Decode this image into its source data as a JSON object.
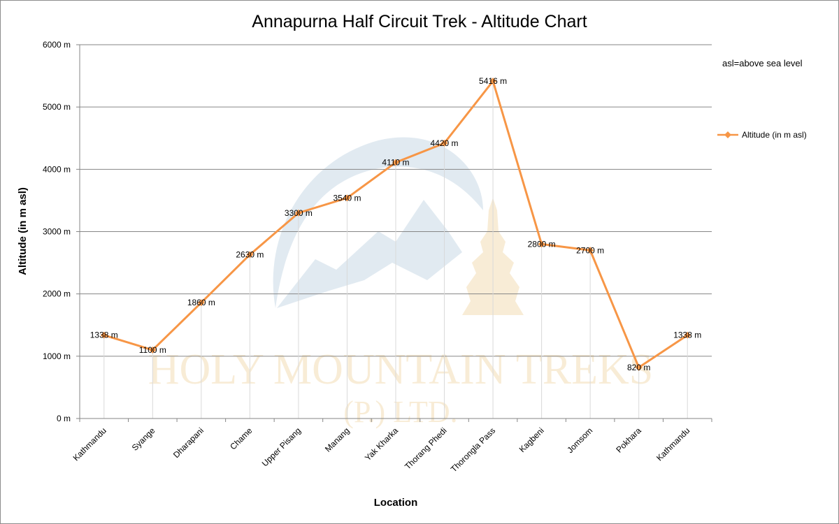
{
  "chart_data": {
    "type": "line",
    "title": "Annapurna Half Circuit Trek - Altitude Chart",
    "xlabel": "Location",
    "ylabel": "Altitude (in m asl)",
    "ylim": [
      0,
      6000
    ],
    "yticks": [
      0,
      1000,
      2000,
      3000,
      4000,
      5000,
      6000
    ],
    "ytick_labels": [
      "0 m",
      "1000 m",
      "2000 m",
      "3000 m",
      "4000 m",
      "5000 m",
      "6000 m"
    ],
    "unit_suffix": " m",
    "grid": true,
    "categories": [
      "Kathmandu",
      "Syange",
      "Dharapani",
      "Chame",
      "Upper Pisang",
      "Manang",
      "Yak Kharka",
      "Thorang Phedi",
      "Thorongla Pass",
      "Kagbeni",
      "Jomsom",
      "Pokhara",
      "Kathmandu"
    ],
    "series": [
      {
        "name": "Altitude (in  m asl)",
        "color": "#f79646",
        "values": [
          1338,
          1100,
          1860,
          2630,
          3300,
          3540,
          4110,
          4420,
          5416,
          2800,
          2700,
          820,
          1338
        ]
      }
    ],
    "data_labels": [
      "1338 m",
      "1100 m",
      "1860 m",
      "2630 m",
      "3300 m",
      "3540 m",
      "4110 m",
      "4420 m",
      "5416 m",
      "2800 m",
      "2700 m",
      "820 m",
      "1338 m"
    ],
    "legend_position": "right",
    "annotation": "asl=above sea level"
  },
  "watermark": {
    "line1": "HOLY MOUNTAIN TREKS",
    "line2": "(P.) LTD."
  }
}
